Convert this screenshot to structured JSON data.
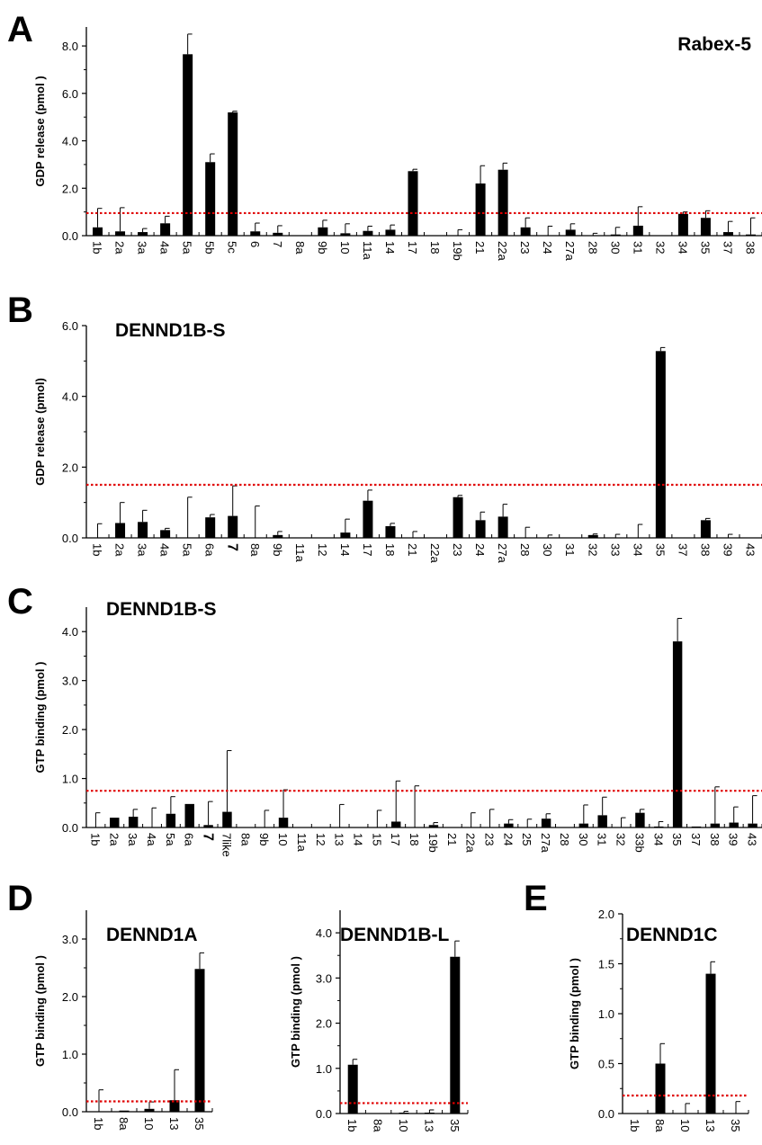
{
  "panel_letters": [
    "A",
    "B",
    "C",
    "D",
    "E"
  ],
  "chart_data": [
    {
      "id": "A",
      "type": "bar",
      "title": "Rabex-5",
      "ylabel": "GDP release (pmol )",
      "ylim": [
        0,
        8.8
      ],
      "yticks": [
        0,
        2,
        4,
        6,
        8
      ],
      "ytick_labels": [
        "0.0",
        "2.0",
        "4.0",
        "6.0",
        "8.0"
      ],
      "threshold": 0.95,
      "threshold_color": "#e00000",
      "bar_color": "#000000",
      "categories": [
        "1b",
        "2a",
        "3a",
        "4a",
        "5a",
        "5b",
        "5c",
        "6",
        "7",
        "8a",
        "9b",
        "10",
        "11a",
        "14",
        "17",
        "18",
        "19b",
        "21",
        "22a",
        "23",
        "24",
        "27a",
        "28",
        "30",
        "31",
        "32",
        "34",
        "35",
        "37",
        "38"
      ],
      "values": [
        0.35,
        0.18,
        0.15,
        0.52,
        7.65,
        3.1,
        5.2,
        0.18,
        0.12,
        0,
        0.35,
        0.1,
        0.2,
        0.25,
        2.72,
        0,
        0,
        2.2,
        2.78,
        0.35,
        0,
        0.25,
        0,
        0.05,
        0.42,
        0,
        0.92,
        0.75,
        0.15,
        0.05
      ],
      "errors": [
        0.8,
        1.0,
        0.15,
        0.3,
        0.85,
        0.35,
        0.05,
        0.35,
        0.3,
        0,
        0.3,
        0.4,
        0.2,
        0.2,
        0.08,
        0,
        0.25,
        0.75,
        0.28,
        0.4,
        0.4,
        0.25,
        0.1,
        0.3,
        0.8,
        0,
        0.08,
        0.3,
        0.45,
        0.7
      ]
    },
    {
      "id": "B",
      "type": "bar",
      "title": "DENND1B-S",
      "ylabel": "GDP release (pmol)",
      "ylim": [
        0,
        6.0
      ],
      "yticks": [
        0,
        2,
        4,
        6
      ],
      "ytick_labels": [
        "0.0",
        "2.0",
        "4.0",
        "6.0"
      ],
      "threshold": 1.5,
      "threshold_color": "#e00000",
      "bar_color": "#000000",
      "categories": [
        "1b",
        "2a",
        "3a",
        "4a",
        "5a",
        "6a",
        "7",
        "8a",
        "9b",
        "11a",
        "12",
        "14",
        "17",
        "18",
        "21",
        "22a",
        "23",
        "24",
        "27a",
        "28",
        "30",
        "31",
        "32",
        "33",
        "34",
        "35",
        "37",
        "38",
        "39",
        "43"
      ],
      "bold_categories": [
        "7"
      ],
      "values": [
        0,
        0.42,
        0.45,
        0.22,
        0,
        0.58,
        0.62,
        0,
        0.08,
        0,
        0,
        0.15,
        1.05,
        0.33,
        0,
        0,
        1.15,
        0.5,
        0.6,
        0,
        0,
        0,
        0.08,
        0,
        0,
        5.28,
        0,
        0.5,
        0,
        0
      ],
      "errors": [
        0.4,
        0.58,
        0.33,
        0.05,
        1.15,
        0.08,
        0.85,
        0.9,
        0.1,
        0,
        0,
        0.38,
        0.3,
        0.08,
        0.18,
        0,
        0.05,
        0.23,
        0.35,
        0.3,
        0.08,
        0,
        0.03,
        0.1,
        0.38,
        0.1,
        0,
        0.05,
        0.1,
        0
      ]
    },
    {
      "id": "C",
      "type": "bar",
      "title": "DENND1B-S",
      "ylabel": "GTP binding (pmol )",
      "ylim": [
        0,
        4.5
      ],
      "yticks": [
        0,
        1,
        2,
        3,
        4
      ],
      "ytick_labels": [
        "0.0",
        "1.0",
        "2.0",
        "3.0",
        "4.0"
      ],
      "threshold": 0.75,
      "threshold_color": "#e00000",
      "bar_color": "#000000",
      "categories": [
        "1b",
        "2a",
        "3a",
        "4a",
        "5a",
        "6a",
        "7",
        "7like",
        "8a",
        "9b",
        "10",
        "11a",
        "12",
        "13",
        "14",
        "15",
        "17",
        "18",
        "19b",
        "21",
        "22a",
        "23",
        "24",
        "25",
        "27a",
        "28",
        "30",
        "31",
        "32",
        "33b",
        "34",
        "35",
        "37",
        "38",
        "39",
        "43"
      ],
      "bold_categories": [
        "7"
      ],
      "values": [
        0,
        0.2,
        0.22,
        0,
        0.28,
        0.48,
        0.05,
        0.32,
        0,
        0,
        0.2,
        0,
        0,
        0,
        0,
        0,
        0.12,
        0,
        0.05,
        0,
        0,
        0,
        0.08,
        0,
        0.18,
        0,
        0.08,
        0.25,
        0,
        0.3,
        0.02,
        3.8,
        0.02,
        0.08,
        0.1,
        0.08
      ],
      "errors": [
        0.3,
        0,
        0.15,
        0.4,
        0.35,
        0,
        0.48,
        1.25,
        0,
        0.35,
        0.57,
        0,
        0,
        0.47,
        0,
        0.35,
        0.83,
        0.85,
        0.05,
        0,
        0.3,
        0.37,
        0.08,
        0.17,
        0.1,
        0,
        0.38,
        0.37,
        0.2,
        0.07,
        0.1,
        0.47,
        0,
        0.75,
        0.32,
        0.57
      ]
    },
    {
      "id": "D1",
      "type": "bar",
      "title": "DENND1A",
      "ylabel": "GTP binding (pmol )",
      "ylim": [
        0,
        3.5
      ],
      "yticks": [
        0,
        1,
        2,
        3
      ],
      "ytick_labels": [
        "0.0",
        "1.0",
        "2.0",
        "3.0"
      ],
      "threshold": 0.18,
      "threshold_color": "#e00000",
      "bar_color": "#000000",
      "categories": [
        "1b",
        "8a",
        "10",
        "13",
        "35"
      ],
      "values": [
        0,
        0.02,
        0.05,
        0.2,
        2.48
      ],
      "errors": [
        0.38,
        0,
        0.12,
        0.53,
        0.28
      ]
    },
    {
      "id": "D2",
      "type": "bar",
      "title": "DENND1B-L",
      "ylabel": "GTP binding (pmol )",
      "ylim": [
        0,
        4.5
      ],
      "yticks": [
        0,
        1,
        2,
        3,
        4
      ],
      "ytick_labels": [
        "0.0",
        "1.0",
        "2.0",
        "3.0",
        "4.0"
      ],
      "threshold": 0.23,
      "threshold_color": "#e00000",
      "bar_color": "#000000",
      "categories": [
        "1b",
        "8a",
        "10",
        "13",
        "35"
      ],
      "values": [
        1.08,
        0,
        0.02,
        0.02,
        3.47
      ],
      "errors": [
        0.12,
        0,
        0.03,
        0.06,
        0.35
      ]
    },
    {
      "id": "E",
      "type": "bar",
      "title": "DENND1C",
      "ylabel": "GTP binding (pmol )",
      "ylim": [
        0,
        2.0
      ],
      "yticks": [
        0,
        0.5,
        1.0,
        1.5,
        2.0
      ],
      "ytick_labels": [
        "0.0",
        "0.5",
        "1.0",
        "1.5",
        "2.0"
      ],
      "threshold": 0.18,
      "threshold_color": "#e00000",
      "bar_color": "#000000",
      "categories": [
        "1b",
        "8a",
        "10",
        "13",
        "35"
      ],
      "values": [
        0,
        0.5,
        0,
        1.4,
        0
      ],
      "errors": [
        0,
        0.2,
        0.1,
        0.12,
        0.12
      ]
    }
  ]
}
